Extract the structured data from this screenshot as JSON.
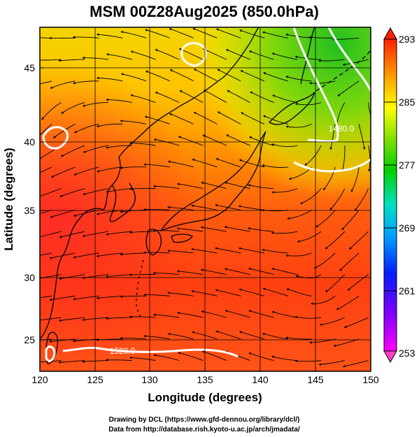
{
  "title": "MSM 00Z28Aug2025 (850.0hPa)",
  "xlabel": "Longitude (degrees)",
  "ylabel": "Latitude  (degrees)",
  "x_ticks": [
    "120",
    "125",
    "130",
    "135",
    "140",
    "145",
    "150"
  ],
  "y_ticks": [
    "25",
    "30",
    "35",
    "40",
    "45"
  ],
  "colorbar_ticks": [
    "293",
    "285",
    "277",
    "269",
    "261",
    "253"
  ],
  "contour_labels": [
    "1480.0",
    "1520.0"
  ],
  "credits": [
    "Drawing by DCL (https://www.gfd-dennou.org/library/dcl/)",
    "Data from http://database.rish.kyoto-u.ac.jp/arch/jmadata/"
  ],
  "map": {
    "lon_range": [
      120,
      150
    ],
    "lat_range": [
      22.5,
      48
    ],
    "fields": [
      "temperature-shading",
      "geopotential-height-contours",
      "wind-streamlines",
      "coastlines"
    ],
    "colors": {
      "warm": "#ff3a1a",
      "mid": "#ff9a00",
      "cool": "#ffe600",
      "cold": "#3ad03a",
      "contour": "#ffffff"
    }
  }
}
